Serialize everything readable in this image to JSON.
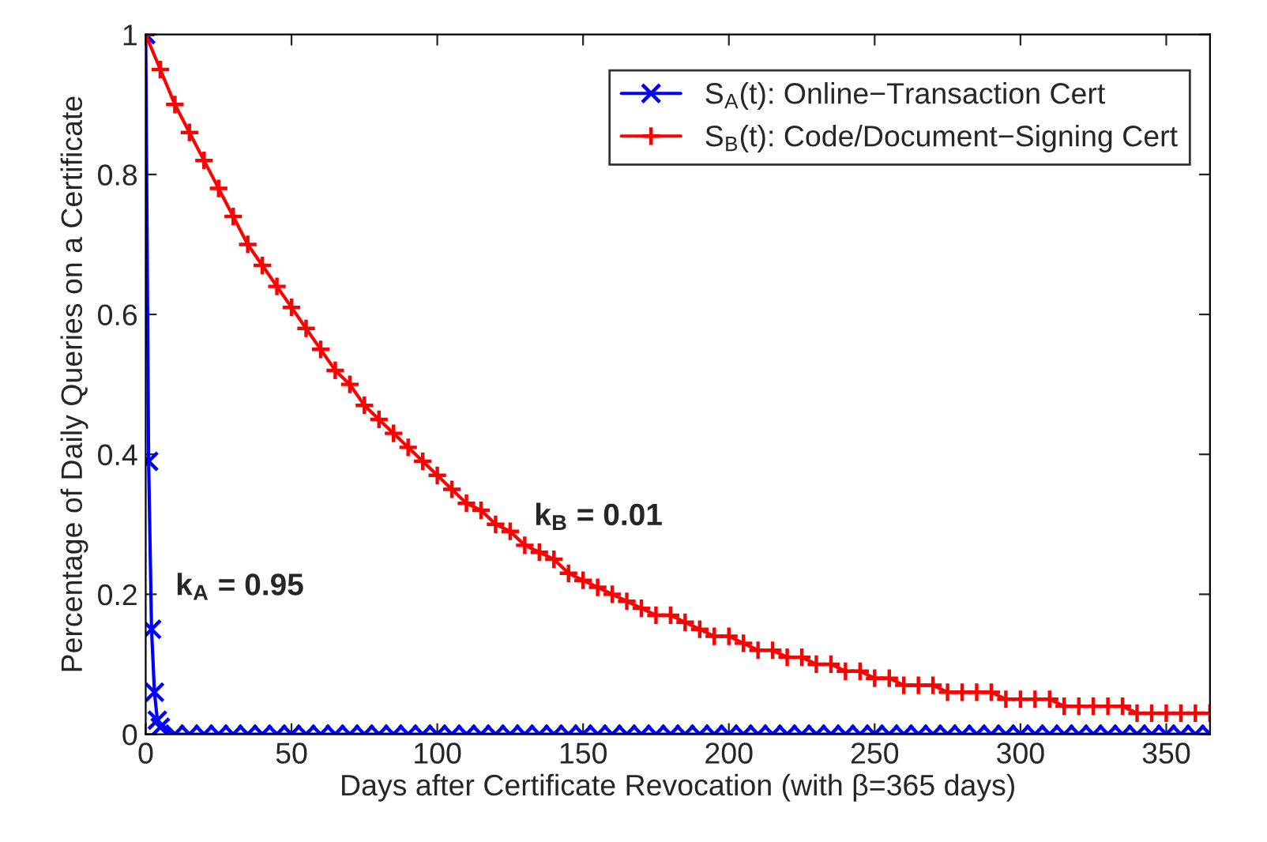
{
  "chart_data": {
    "type": "line",
    "xlabel": "Days after Certificate Revocation (with β=365 days)",
    "ylabel": "Percentage of Daily Queries on a Certificate",
    "xlim": [
      0,
      365
    ],
    "xticks": [
      0,
      50,
      100,
      150,
      200,
      250,
      300,
      350
    ],
    "ylim": [
      0,
      1
    ],
    "yticks": [
      0,
      0.2,
      0.4,
      0.6,
      0.8,
      1
    ],
    "grid": false,
    "legend": "top right",
    "line_style": "solid",
    "series": [
      {
        "name": "S$_{A}$(t): Online−Transaction Cert",
        "color": "#0000ff",
        "marker": "cross",
        "x": [
          0,
          1,
          2,
          3,
          4,
          5,
          10,
          15,
          20,
          25,
          30,
          35,
          40,
          45,
          50,
          55,
          60,
          65,
          70,
          75,
          80,
          85,
          90,
          95,
          100,
          105,
          110,
          115,
          120,
          125,
          130,
          135,
          140,
          145,
          150,
          155,
          160,
          165,
          170,
          175,
          180,
          185,
          190,
          195,
          200,
          205,
          210,
          215,
          220,
          225,
          230,
          235,
          240,
          245,
          250,
          255,
          260,
          265,
          270,
          275,
          280,
          285,
          290,
          295,
          300,
          305,
          310,
          315,
          320,
          325,
          330,
          335,
          340,
          345,
          350,
          355,
          360,
          365
        ],
        "values": [
          1,
          0.39,
          0.15,
          0.06,
          0.02,
          0.01,
          0,
          0,
          0,
          0,
          0,
          0,
          0,
          0,
          0,
          0,
          0,
          0,
          0,
          0,
          0,
          0,
          0,
          0,
          0,
          0,
          0,
          0,
          0,
          0,
          0,
          0,
          0,
          0,
          0,
          0,
          0,
          0,
          0,
          0,
          0,
          0,
          0,
          0,
          0,
          0,
          0,
          0,
          0,
          0,
          0,
          0,
          0,
          0,
          0,
          0,
          0,
          0,
          0,
          0,
          0,
          0,
          0,
          0,
          0,
          0,
          0,
          0,
          0,
          0,
          0,
          0,
          0,
          0,
          0,
          0,
          0,
          0
        ]
      },
      {
        "name": "S$_{B}$(t): Code/Document−Signing Cert",
        "color": "#ff0000",
        "marker": "plus",
        "x": [
          0,
          5,
          10,
          15,
          20,
          25,
          30,
          35,
          40,
          45,
          50,
          55,
          60,
          65,
          70,
          75,
          80,
          85,
          90,
          95,
          100,
          105,
          110,
          115,
          120,
          125,
          130,
          135,
          140,
          145,
          150,
          155,
          160,
          165,
          170,
          175,
          180,
          185,
          190,
          195,
          200,
          205,
          210,
          215,
          220,
          225,
          230,
          235,
          240,
          245,
          250,
          255,
          260,
          265,
          270,
          275,
          280,
          285,
          290,
          295,
          300,
          305,
          310,
          315,
          320,
          325,
          330,
          335,
          340,
          345,
          350,
          355,
          360,
          365
        ],
        "values": [
          1.0,
          0.95,
          0.9,
          0.86,
          0.82,
          0.78,
          0.74,
          0.7,
          0.67,
          0.64,
          0.61,
          0.58,
          0.55,
          0.52,
          0.5,
          0.47,
          0.45,
          0.43,
          0.41,
          0.39,
          0.37,
          0.35,
          0.33,
          0.32,
          0.3,
          0.29,
          0.27,
          0.26,
          0.25,
          0.23,
          0.22,
          0.21,
          0.2,
          0.19,
          0.18,
          0.17,
          0.17,
          0.16,
          0.15,
          0.14,
          0.14,
          0.13,
          0.12,
          0.12,
          0.11,
          0.11,
          0.1,
          0.1,
          0.09,
          0.09,
          0.08,
          0.08,
          0.07,
          0.07,
          0.07,
          0.06,
          0.06,
          0.06,
          0.06,
          0.05,
          0.05,
          0.05,
          0.05,
          0.04,
          0.04,
          0.04,
          0.04,
          0.04,
          0.03,
          0.03,
          0.03,
          0.03,
          0.03,
          0.03
        ]
      }
    ],
    "annotations": [
      "k$_{A}$ = 0.95",
      "k$_{B}$ = 0.01"
    ]
  }
}
